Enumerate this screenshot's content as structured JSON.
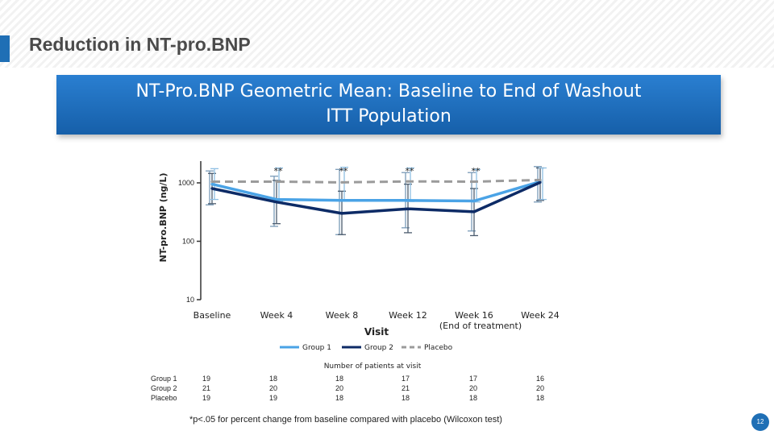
{
  "slide_title": "Reduction in NT-pro.BNP",
  "chart_title_line1": "NT-Pro.BNP Geometric Mean: Baseline to End of Washout",
  "chart_title_line2": "ITT Population",
  "chart_data": {
    "type": "line",
    "ylabel": "NT-pro.BNP (ng/L)",
    "xlabel": "Visit",
    "yscale": "log",
    "ylim": [
      10,
      2000
    ],
    "yticks": [
      10,
      100,
      1000
    ],
    "categories": [
      "Baseline",
      "Week 4",
      "Week 8",
      "Week 12",
      "Week 16",
      "Week 24"
    ],
    "category_note": {
      "index": 4,
      "text": "(End of treatment)"
    },
    "series": [
      {
        "name": "Group 1",
        "color": "#4aa3e6",
        "dash": "solid",
        "values": [
          950,
          520,
          500,
          500,
          490,
          1050
        ],
        "error_low": [
          420,
          180,
          130,
          170,
          150,
          470
        ],
        "error_high": [
          1600,
          1300,
          1700,
          1500,
          1500,
          1900
        ]
      },
      {
        "name": "Group 2",
        "color": "#0d2b66",
        "dash": "solid",
        "values": [
          800,
          470,
          300,
          360,
          320,
          1020
        ],
        "error_low": [
          440,
          200,
          130,
          140,
          125,
          500
        ],
        "error_high": [
          1450,
          1100,
          720,
          950,
          800,
          1800
        ]
      },
      {
        "name": "Placebo",
        "color": "#9b9b9b",
        "dash": "dashed",
        "values": [
          1050,
          1050,
          1020,
          1060,
          1050,
          1120
        ],
        "error_low": [
          520,
          480,
          500,
          480,
          470,
          520
        ],
        "error_high": [
          1750,
          1800,
          1850,
          1800,
          1700,
          1800
        ]
      }
    ],
    "significance_markers": [
      {
        "category": "Week 4",
        "text": "**"
      },
      {
        "category": "Week 8",
        "text": "**"
      },
      {
        "category": "Week 12",
        "text": "**"
      },
      {
        "category": "Week 16",
        "text": "**"
      }
    ],
    "grid": false,
    "legend_position": "bottom"
  },
  "patients_table": {
    "title": "Number of patients at visit",
    "rows": [
      {
        "label": "Group 1",
        "values": [
          "19",
          "18",
          "18",
          "17",
          "17",
          "16"
        ]
      },
      {
        "label": "Group 2",
        "values": [
          "21",
          "20",
          "20",
          "21",
          "20",
          "20"
        ]
      },
      {
        "label": "Placebo",
        "values": [
          "19",
          "19",
          "18",
          "18",
          "18",
          "18"
        ]
      }
    ]
  },
  "footnote": "*p<.05 for percent change from baseline compared with placebo (Wilcoxon test)",
  "page_number": "12"
}
